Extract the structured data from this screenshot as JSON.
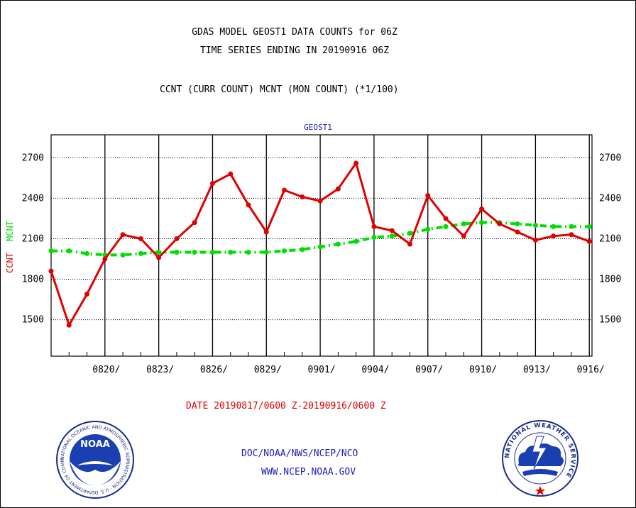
{
  "header": {
    "title_line1": "GDAS MODEL GEOST1 DATA COUNTS for 06Z",
    "title_line2": "TIME SERIES ENDING IN 20190916 06Z",
    "subtitle": "CCNT (CURR COUNT) MCNT (MON COUNT) (*1/100)"
  },
  "footer": {
    "date_range": "DATE 20190817/0600 Z-20190916/0600 Z",
    "org": "DOC/NOAA/NWS/NCEP/NCO",
    "url": "WWW.NCEP.NOAA.GOV"
  },
  "logos": {
    "left": "noaa-logo",
    "left_text": "NOAA",
    "left_ring": "NATIONAL OCEANIC AND ATMOSPHERIC ADMINISTRATION · U.S. DEPARTMENT OF COMMERCE",
    "right": "nws-logo",
    "right_ring": "NATIONAL WEATHER SERVICE"
  },
  "chart_data": {
    "type": "line",
    "title": "GEOST1",
    "ylabel_ccnt": "CCNT",
    "ylabel_mcnt": "MCNT",
    "ylim": [
      1230,
      2870
    ],
    "yticks": [
      1500,
      1800,
      2100,
      2400,
      2700
    ],
    "xticks": [
      "0820/",
      "0823/",
      "0826/",
      "0829/",
      "0901/",
      "0904/",
      "0907/",
      "0910/",
      "0913/",
      "0916/"
    ],
    "grid": true,
    "colors": {
      "ccnt": "#e00000",
      "mcnt": "#00dd00",
      "title": "#2020c0"
    },
    "series": [
      {
        "name": "CCNT",
        "style": "solid-with-dots",
        "values": [
          1860,
          1460,
          1690,
          1950,
          2130,
          2100,
          1960,
          2100,
          2220,
          2510,
          2580,
          2350,
          2150,
          2460,
          2410,
          2380,
          2470,
          2660,
          2190,
          2160,
          2060,
          2420,
          2250,
          2120,
          2320,
          2210,
          2150,
          2090,
          2120,
          2130,
          2080
        ]
      },
      {
        "name": "MCNT",
        "style": "dash-dot",
        "values": [
          2010,
          2010,
          1990,
          1980,
          1980,
          1990,
          2000,
          2000,
          2000,
          2000,
          2000,
          2000,
          2000,
          2010,
          2020,
          2040,
          2060,
          2080,
          2110,
          2120,
          2140,
          2170,
          2190,
          2210,
          2220,
          2220,
          2210,
          2200,
          2190,
          2190,
          2190
        ]
      }
    ]
  }
}
